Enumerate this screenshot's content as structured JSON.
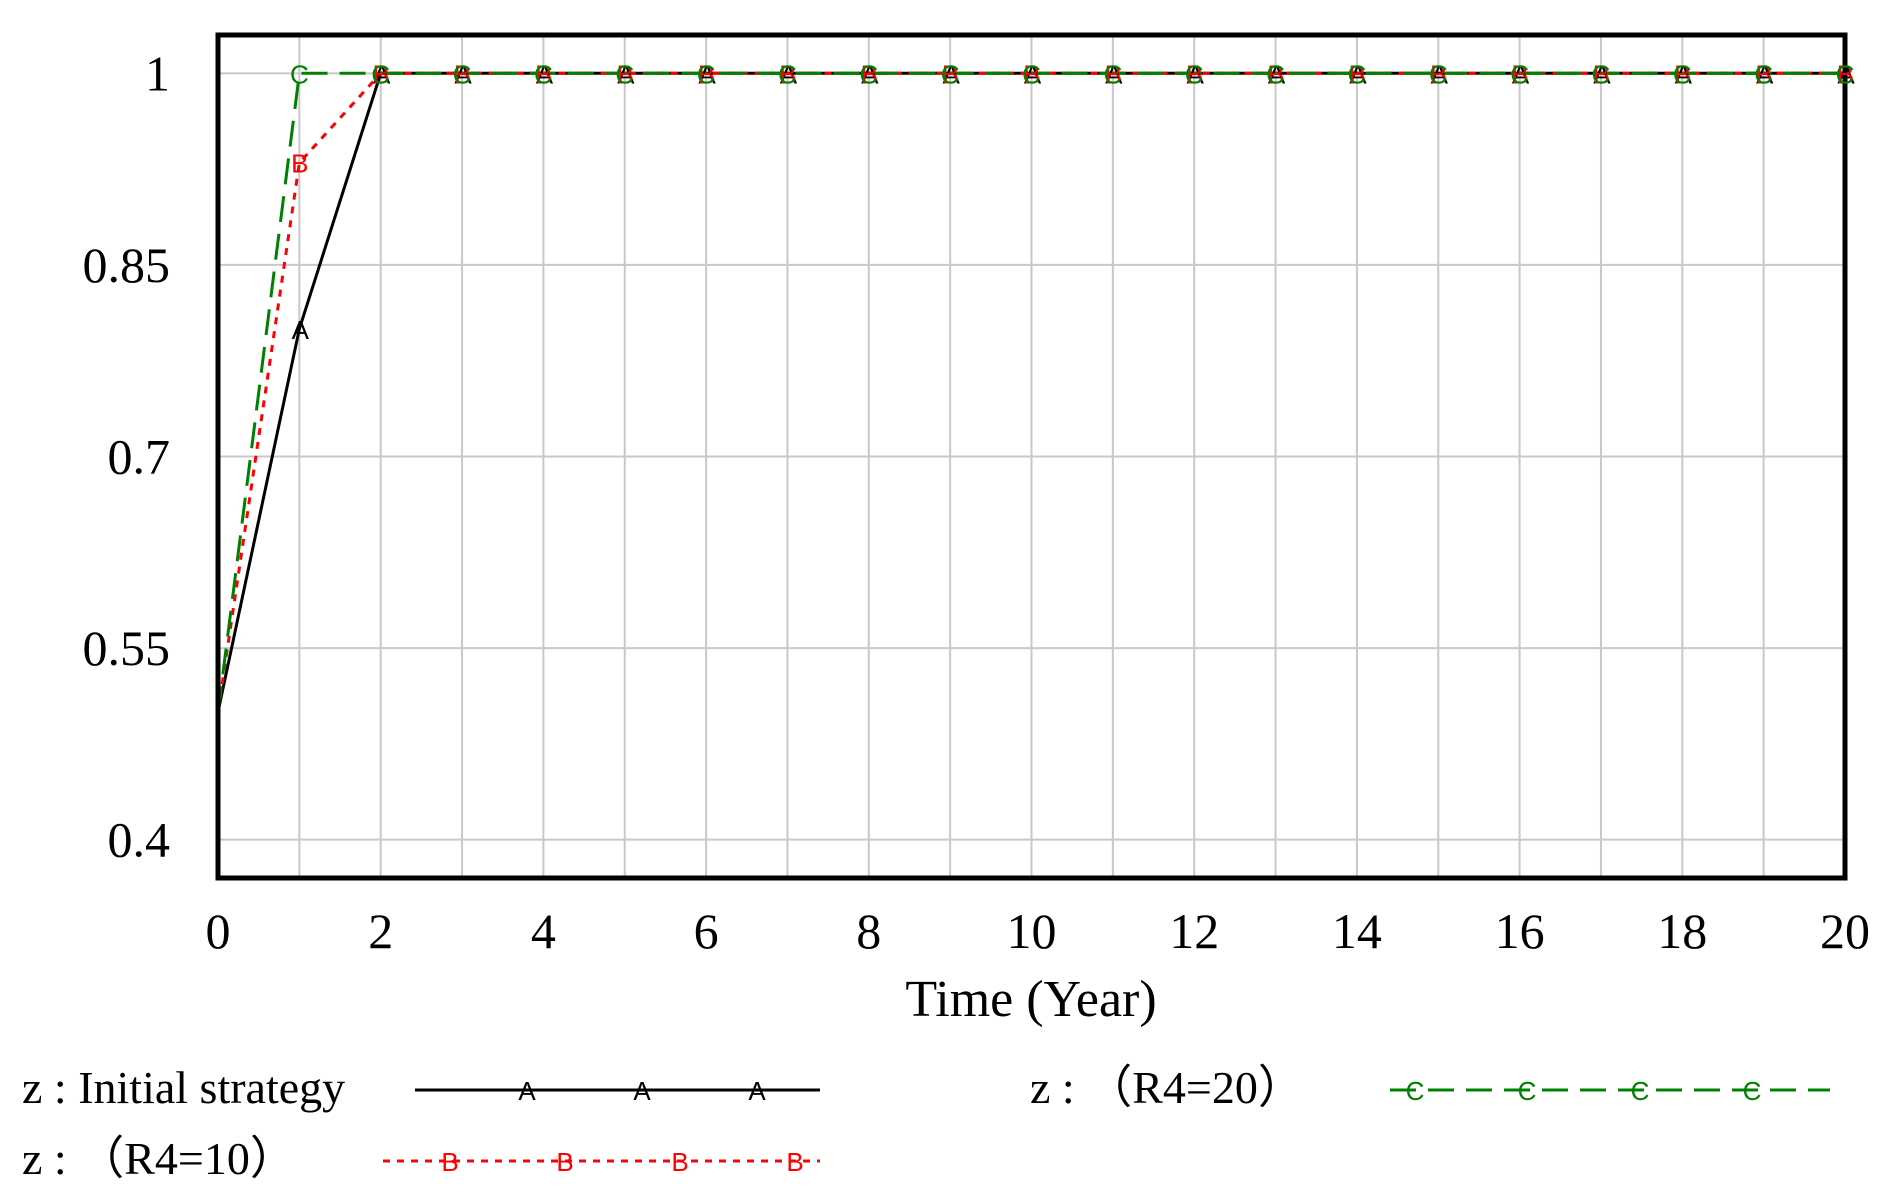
{
  "chart_data": {
    "type": "line",
    "xlabel": "Time (Year)",
    "ylabel": "",
    "xlim": [
      0,
      20
    ],
    "ylim": [
      0.37,
      1.03
    ],
    "x_ticks": [
      "0",
      "2",
      "4",
      "6",
      "8",
      "10",
      "12",
      "14",
      "16",
      "18",
      "20"
    ],
    "y_ticks": [
      "0.4",
      "0.55",
      "0.7",
      "0.85",
      "1"
    ],
    "grid": true,
    "legend_placement": "bottom",
    "series": [
      {
        "name": "z : Initial strategy",
        "marker": "A",
        "color": "#000000",
        "style": "solid",
        "x": [
          0,
          1,
          2,
          3,
          4,
          5,
          6,
          7,
          8,
          9,
          10,
          11,
          12,
          13,
          14,
          15,
          16,
          17,
          18,
          19,
          20
        ],
        "y": [
          0.5,
          0.8,
          1,
          1,
          1,
          1,
          1,
          1,
          1,
          1,
          1,
          1,
          1,
          1,
          1,
          1,
          1,
          1,
          1,
          1,
          1
        ]
      },
      {
        "name": "z : （R4=10）",
        "marker": "B",
        "color": "#ff0000",
        "style": "dotted",
        "x": [
          0,
          1,
          2,
          3,
          4,
          5,
          6,
          7,
          8,
          9,
          10,
          11,
          12,
          13,
          14,
          15,
          16,
          17,
          18,
          19,
          20
        ],
        "y": [
          0.5,
          0.93,
          1,
          1,
          1,
          1,
          1,
          1,
          1,
          1,
          1,
          1,
          1,
          1,
          1,
          1,
          1,
          1,
          1,
          1,
          1
        ]
      },
      {
        "name": "z : （R4=20）",
        "marker": "C",
        "color": "#008000",
        "style": "dashed",
        "x": [
          0,
          1,
          2,
          3,
          4,
          5,
          6,
          7,
          8,
          9,
          10,
          11,
          12,
          13,
          14,
          15,
          16,
          17,
          18,
          19,
          20
        ],
        "y": [
          0.5,
          1,
          1,
          1,
          1,
          1,
          1,
          1,
          1,
          1,
          1,
          1,
          1,
          1,
          1,
          1,
          1,
          1,
          1,
          1,
          1
        ]
      }
    ]
  }
}
